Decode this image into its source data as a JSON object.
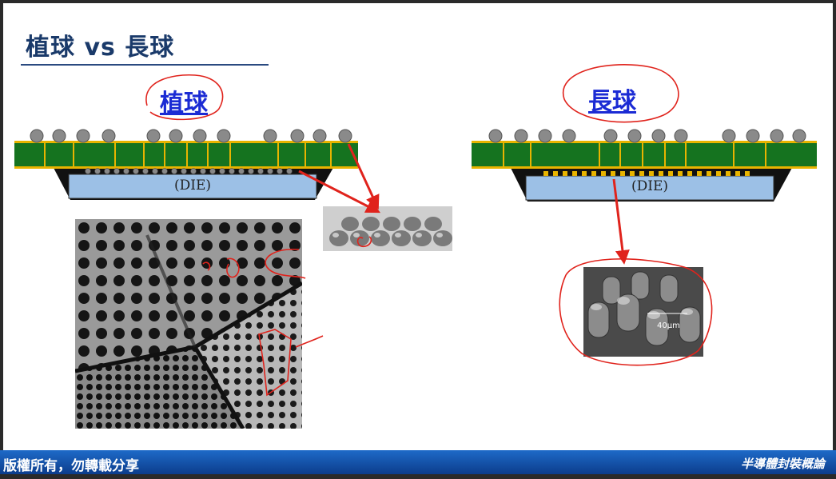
{
  "slide": {
    "title": "植球 vs 長球",
    "left_label": "植球",
    "right_label": "長球",
    "die_label": "(DIE)",
    "sem_scale_label": "40µm"
  },
  "footer": {
    "left_text": "版權所有，勿轉載分享",
    "right_text": "半導體封裝概論"
  },
  "colors": {
    "substrate": "#15731f",
    "pad": "#e8b400",
    "die": "#9cc0e6",
    "annotation": "#e0231c",
    "title": "#1a3a6a",
    "footer": "#1352a8"
  }
}
